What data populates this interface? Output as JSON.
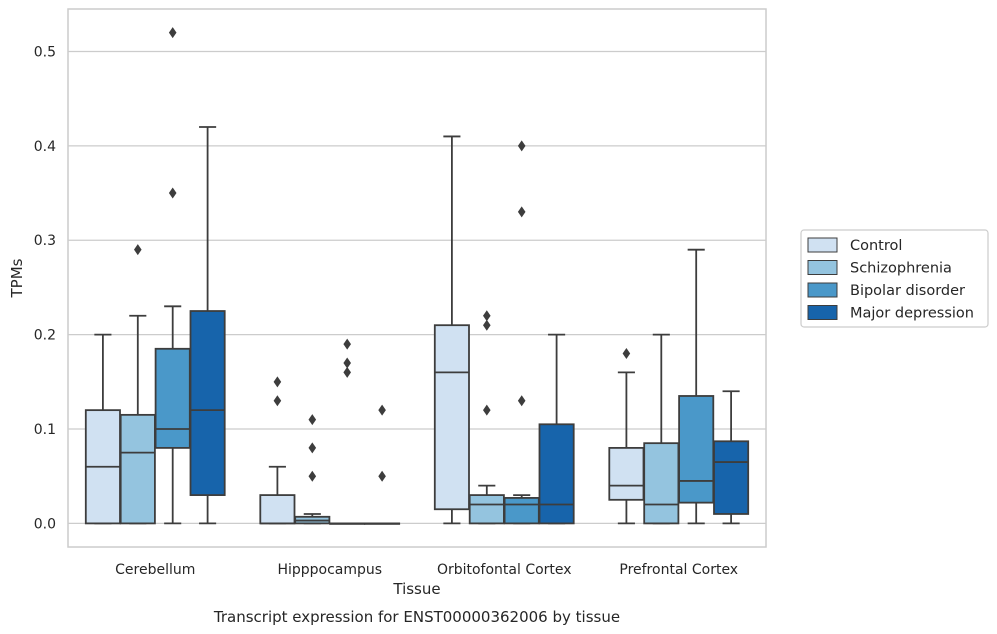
{
  "caption": "Transcript expression for ENST00000362006 by tissue",
  "chart_data": {
    "type": "box",
    "xlabel": "Tissue",
    "ylabel": "TPMs",
    "ylim": [
      -0.025,
      0.545
    ],
    "yticks": [
      "0.0",
      "0.1",
      "0.2",
      "0.3",
      "0.4",
      "0.5"
    ],
    "grid": true,
    "legend_position": "right",
    "categories": [
      "Cerebellum",
      "Hipppocampus",
      "Orbitofontal Cortex",
      "Prefrontal Cortex"
    ],
    "series": [
      {
        "name": "Control",
        "color": "#d0e1f2",
        "boxes": [
          {
            "min": 0,
            "q1": 0,
            "median": 0.06,
            "q3": 0.12,
            "max": 0.2,
            "fliers": []
          },
          {
            "min": 0,
            "q1": 0,
            "median": 0,
            "q3": 0.03,
            "max": 0.06,
            "fliers": [
              0.13,
              0.15
            ]
          },
          {
            "min": 0,
            "q1": 0.015,
            "median": 0.16,
            "q3": 0.21,
            "max": 0.41,
            "fliers": []
          },
          {
            "min": 0,
            "q1": 0.025,
            "median": 0.04,
            "q3": 0.08,
            "max": 0.16,
            "fliers": [
              0.18
            ]
          }
        ]
      },
      {
        "name": "Schizophrenia",
        "color": "#94c4df",
        "boxes": [
          {
            "min": 0,
            "q1": 0,
            "median": 0.075,
            "q3": 0.115,
            "max": 0.22,
            "fliers": [
              0.29
            ]
          },
          {
            "min": 0,
            "q1": 0,
            "median": 0.003,
            "q3": 0.007,
            "max": 0.01,
            "fliers": [
              0.05,
              0.08,
              0.11
            ]
          },
          {
            "min": 0,
            "q1": 0,
            "median": 0.02,
            "q3": 0.03,
            "max": 0.04,
            "fliers": [
              0.12,
              0.21,
              0.22
            ]
          },
          {
            "min": 0,
            "q1": 0,
            "median": 0.02,
            "q3": 0.085,
            "max": 0.2,
            "fliers": []
          }
        ]
      },
      {
        "name": "Bipolar disorder",
        "color": "#4a98c9",
        "boxes": [
          {
            "min": 0,
            "q1": 0.08,
            "median": 0.1,
            "q3": 0.185,
            "max": 0.23,
            "fliers": [
              0.35,
              0.52
            ]
          },
          {
            "min": 0,
            "q1": 0,
            "median": 0,
            "q3": 0,
            "max": 0,
            "fliers": [
              0.16,
              0.17,
              0.19
            ]
          },
          {
            "min": 0,
            "q1": 0,
            "median": 0.02,
            "q3": 0.027,
            "max": 0.03,
            "fliers": [
              0.13,
              0.33,
              0.4
            ]
          },
          {
            "min": 0,
            "q1": 0.022,
            "median": 0.045,
            "q3": 0.135,
            "max": 0.29,
            "fliers": []
          }
        ]
      },
      {
        "name": "Major depression",
        "color": "#1764ab",
        "boxes": [
          {
            "min": 0,
            "q1": 0.03,
            "median": 0.12,
            "q3": 0.225,
            "max": 0.42,
            "fliers": []
          },
          {
            "min": 0,
            "q1": 0,
            "median": 0,
            "q3": 0,
            "max": 0,
            "fliers": [
              0.05,
              0.12
            ]
          },
          {
            "min": 0,
            "q1": 0,
            "median": 0.02,
            "q3": 0.105,
            "max": 0.2,
            "fliers": []
          },
          {
            "min": 0,
            "q1": 0.01,
            "median": 0.065,
            "q3": 0.087,
            "max": 0.14,
            "fliers": []
          }
        ]
      }
    ]
  }
}
